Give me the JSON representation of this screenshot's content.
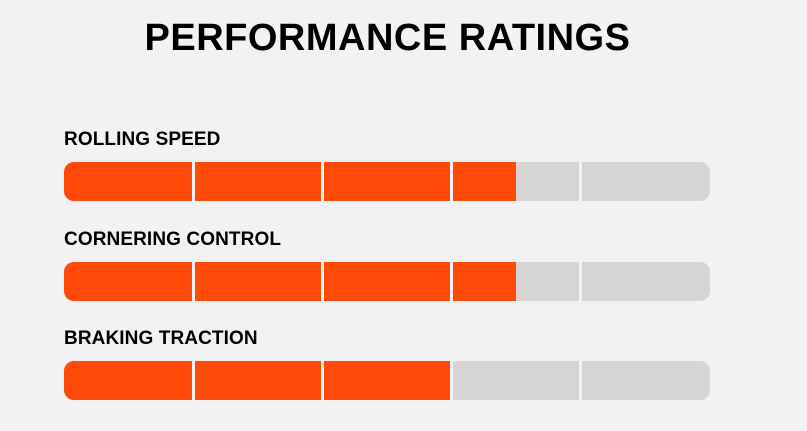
{
  "title": "PERFORMANCE RATINGS",
  "colors": {
    "background": "#f2f2f2",
    "filled": "#ff4a07",
    "empty": "#d6d5d3",
    "text": "#000000"
  },
  "segments_total": 5,
  "ratings": [
    {
      "label": "ROLLING SPEED",
      "value": 3.5
    },
    {
      "label": "CORNERING CONTROL",
      "value": 3.5
    },
    {
      "label": "BRAKING TRACTION",
      "value": 3
    }
  ]
}
